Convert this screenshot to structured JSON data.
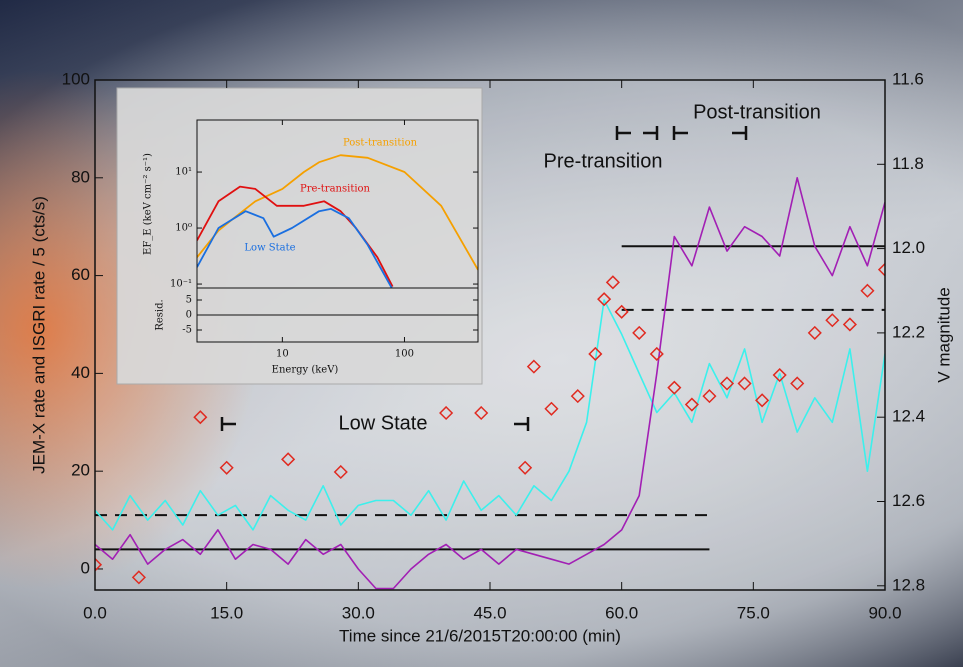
{
  "chart_data": [
    {
      "type": "line",
      "xlabel": "Time since 21/6/2015T20:00:00 (min)",
      "ylabel": "JEM-X rate and ISGRI rate / 5 (cts/s)",
      "y2label": "V magnitude",
      "xlim": [
        0,
        90
      ],
      "ylim": [
        -4.3,
        100
      ],
      "y2lim": [
        12.81,
        11.6
      ],
      "xticks": [
        {
          "value": 0,
          "label": "0.0"
        },
        {
          "value": 15,
          "label": "15.0"
        },
        {
          "value": 30,
          "label": "30.0"
        },
        {
          "value": 45,
          "label": "45.0"
        },
        {
          "value": 60,
          "label": "60.0"
        },
        {
          "value": 75,
          "label": "75.0"
        },
        {
          "value": 90,
          "label": "90.0"
        }
      ],
      "yticks": [
        0,
        20,
        40,
        60,
        80,
        100
      ],
      "y2ticks": [
        11.6,
        11.8,
        {
          "value": 12,
          "label": "12.0"
        },
        12.2,
        12.4,
        12.6,
        12.8
      ],
      "annotations": [
        "Low State",
        "Pre-transition",
        "Post-transition"
      ],
      "series": [
        {
          "color": "#3cf0ec",
          "marker": "none",
          "x": [
            0,
            2,
            4,
            6,
            8,
            10,
            12,
            14,
            16,
            18,
            20,
            22,
            24,
            26,
            28,
            30,
            32,
            34,
            36,
            38,
            40,
            42,
            44,
            46,
            48,
            50,
            52,
            54,
            56,
            58,
            60,
            62,
            64,
            66,
            68,
            70,
            72,
            74,
            76,
            78,
            80,
            82,
            84,
            86,
            88,
            90
          ],
          "values": [
            12,
            8,
            15,
            10,
            14,
            9,
            16,
            11,
            13,
            8,
            15,
            12,
            10,
            17,
            9,
            13,
            14,
            14,
            11,
            16,
            10,
            18,
            12,
            15,
            11,
            17,
            14,
            20,
            30,
            55,
            48,
            40,
            32,
            36,
            30,
            42,
            35,
            45,
            30,
            40,
            28,
            35,
            30,
            45,
            20,
            44
          ]
        },
        {
          "color": "#a21fb4",
          "marker": "none",
          "x": [
            0,
            2,
            4,
            6,
            8,
            10,
            12,
            14,
            16,
            18,
            20,
            22,
            24,
            26,
            28,
            30,
            32,
            34,
            36,
            38,
            40,
            42,
            44,
            46,
            48,
            50,
            52,
            54,
            56,
            58,
            60,
            62,
            64,
            66,
            68,
            70,
            72,
            74,
            76,
            78,
            80,
            82,
            84,
            86,
            88,
            90
          ],
          "values": [
            5,
            2,
            7,
            1,
            4,
            6,
            3,
            8,
            2,
            5,
            4,
            1,
            6,
            3,
            5,
            0,
            -4,
            -4,
            0,
            3,
            5,
            2,
            4,
            1,
            4,
            3,
            2,
            1,
            3,
            5,
            8,
            15,
            40,
            68,
            62,
            74,
            65,
            70,
            68,
            64,
            80,
            66,
            60,
            70,
            62,
            75
          ]
        },
        {
          "color": "#e02a20",
          "marker": "diamond",
          "axis": "y2",
          "x": [
            0,
            5,
            12,
            15,
            22,
            28,
            40,
            44,
            49,
            50,
            52,
            55,
            57,
            58,
            59,
            60,
            62,
            64,
            66,
            68,
            70,
            72,
            74,
            76,
            78,
            80,
            82,
            84,
            86,
            88,
            90
          ],
          "values": [
            12.75,
            12.78,
            12.4,
            12.52,
            12.5,
            12.53,
            12.39,
            12.39,
            12.52,
            12.28,
            12.38,
            12.35,
            12.25,
            12.12,
            12.08,
            12.15,
            12.2,
            12.25,
            12.33,
            12.37,
            12.35,
            12.32,
            12.32,
            12.36,
            12.3,
            12.32,
            12.2,
            12.17,
            12.18,
            12.1,
            12.05
          ]
        }
      ],
      "hlines": [
        {
          "y": 4,
          "xmin": 0,
          "xmax": 70,
          "style": "solid"
        },
        {
          "y": 11,
          "xmin": 0,
          "xmax": 70,
          "style": "dashed"
        },
        {
          "y": 66,
          "xmin": 60,
          "xmax": 90,
          "style": "solid"
        },
        {
          "y": 53,
          "xmin": 60,
          "xmax": 90,
          "style": "dashed"
        }
      ]
    },
    {
      "type": "line",
      "xscale": "log",
      "yscale": "log",
      "ylabel": "EF_E (keV cm⁻² s⁻¹)",
      "xlim": [
        2,
        400
      ],
      "ylim": [
        0.085,
        85
      ],
      "yticks": [
        {
          "value": 0.1,
          "label": "10⁻¹"
        },
        {
          "value": 1,
          "label": "10⁰"
        },
        {
          "value": 10,
          "label": "10¹"
        }
      ],
      "series": [
        {
          "name": "Post-transition",
          "color": "#f5a000",
          "marker": "none",
          "x": [
            2,
            3,
            4,
            6,
            10,
            15,
            20,
            30,
            50,
            100,
            200,
            400
          ],
          "values": [
            0.3,
            0.9,
            1.5,
            3,
            5,
            10,
            15,
            20,
            18,
            10,
            2.5,
            0.18
          ]
        },
        {
          "name": "Pre-transition",
          "color": "#e01010",
          "marker": "none",
          "x": [
            2,
            3,
            4.5,
            6,
            9,
            15,
            22,
            30,
            40,
            60,
            80
          ],
          "values": [
            0.6,
            3,
            5.5,
            5,
            2.5,
            2.5,
            3,
            2,
            1,
            0.3,
            0.09
          ]
        },
        {
          "name": "Low State",
          "color": "#1a6fe0",
          "marker": "none",
          "x": [
            2,
            3,
            5,
            7,
            8.5,
            12,
            20,
            25,
            35,
            50,
            80
          ],
          "values": [
            0.2,
            1,
            2,
            1.5,
            0.7,
            1,
            2,
            2.2,
            1.5,
            0.5,
            0.08
          ]
        }
      ]
    },
    {
      "type": "line",
      "xscale": "log",
      "xlabel": "Energy (keV)",
      "ylabel": "Resid.",
      "xlim": [
        2,
        400
      ],
      "ylim": [
        -9,
        9
      ],
      "xticks": [
        10,
        100
      ],
      "yticks": [
        5,
        0,
        -5
      ],
      "series": [],
      "hlines": [
        {
          "y": 0,
          "xmin": 2,
          "xmax": 400,
          "style": "solid"
        }
      ]
    }
  ]
}
